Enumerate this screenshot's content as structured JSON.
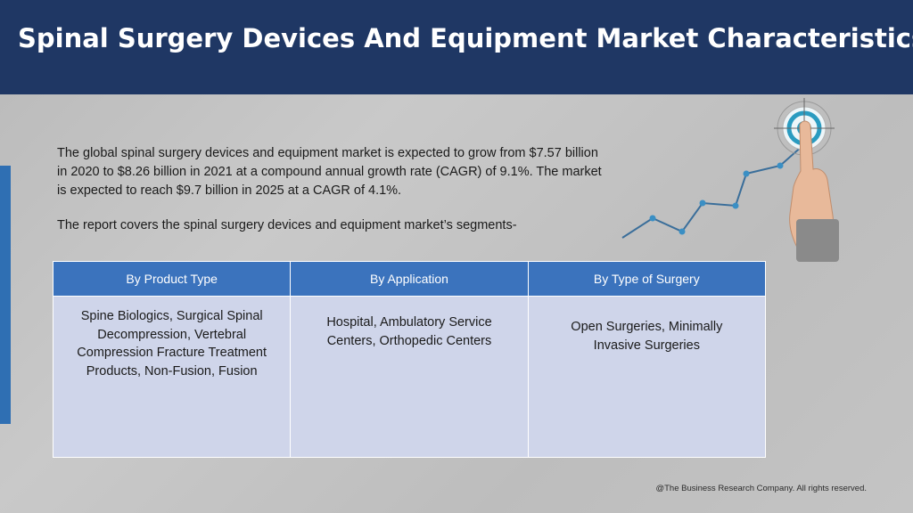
{
  "header": {
    "title": "Spinal Surgery Devices And Equipment Market Characteristics:"
  },
  "intro": {
    "paragraph1": "The global spinal surgery devices and equipment market is expected to grow from $7.57 billion in 2020 to $8.26 billion in 2021 at a compound annual growth rate (CAGR) of 9.1%. The market is expected to reach $9.7 billion in 2025 at a CAGR of 4.1%.",
    "paragraph2": "The report covers the spinal surgery devices and equipment market’s segments-"
  },
  "segments": {
    "columns": [
      {
        "header": "By Product Type",
        "body": "Spine Biologics, Surgical Spinal Decompression, Vertebral Compression Fracture Treatment Products, Non-Fusion, Fusion"
      },
      {
        "header": "By Application",
        "body": "Hospital, Ambulatory Service Centers, Orthopedic Centers"
      },
      {
        "header": "By Type of Surgery",
        "body": "Open Surgeries, Minimally Invasive Surgeries"
      }
    ]
  },
  "footer": {
    "copyright": "@The Business Research Company. All rights reserved."
  },
  "colors": {
    "title_bar": "#1f3764",
    "accent": "#2f6fb3",
    "table_header": "#3b73bd",
    "table_body": "#cfd5ea",
    "target_ring": "#2a9bc0"
  },
  "icons": {
    "decor": "growth-chart-with-target-and-pointing-hand-illustration"
  }
}
